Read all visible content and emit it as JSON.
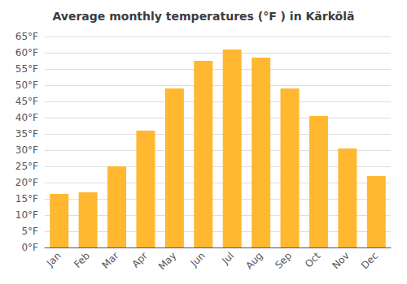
{
  "chart_data": {
    "type": "bar",
    "title": "Average monthly temperatures (°F ) in Kärkölä",
    "categories": [
      "Jan",
      "Feb",
      "Mar",
      "Apr",
      "May",
      "Jun",
      "Jul",
      "Aug",
      "Sep",
      "Oct",
      "Nov",
      "Dec"
    ],
    "values": [
      16.5,
      17.0,
      25.0,
      36.0,
      49.0,
      57.5,
      61.0,
      58.5,
      49.0,
      40.5,
      30.5,
      22.0
    ],
    "color": "#FFB830",
    "ylim": [
      0,
      65
    ],
    "yticks": [
      {
        "value": 0,
        "label": "0°F"
      },
      {
        "value": 5,
        "label": "5°F"
      },
      {
        "value": 10,
        "label": "10°F"
      },
      {
        "value": 15,
        "label": "15°F"
      },
      {
        "value": 20,
        "label": "20°F"
      },
      {
        "value": 25,
        "label": "25°F"
      },
      {
        "value": 30,
        "label": "30°F"
      },
      {
        "value": 35,
        "label": "35°F"
      },
      {
        "value": 40,
        "label": "40°F"
      },
      {
        "value": 45,
        "label": "45°F"
      },
      {
        "value": 50,
        "label": "50°F"
      },
      {
        "value": 55,
        "label": "55°F"
      },
      {
        "value": 60,
        "label": "60°F"
      },
      {
        "value": 65,
        "label": "65°F"
      }
    ],
    "grid": true
  }
}
